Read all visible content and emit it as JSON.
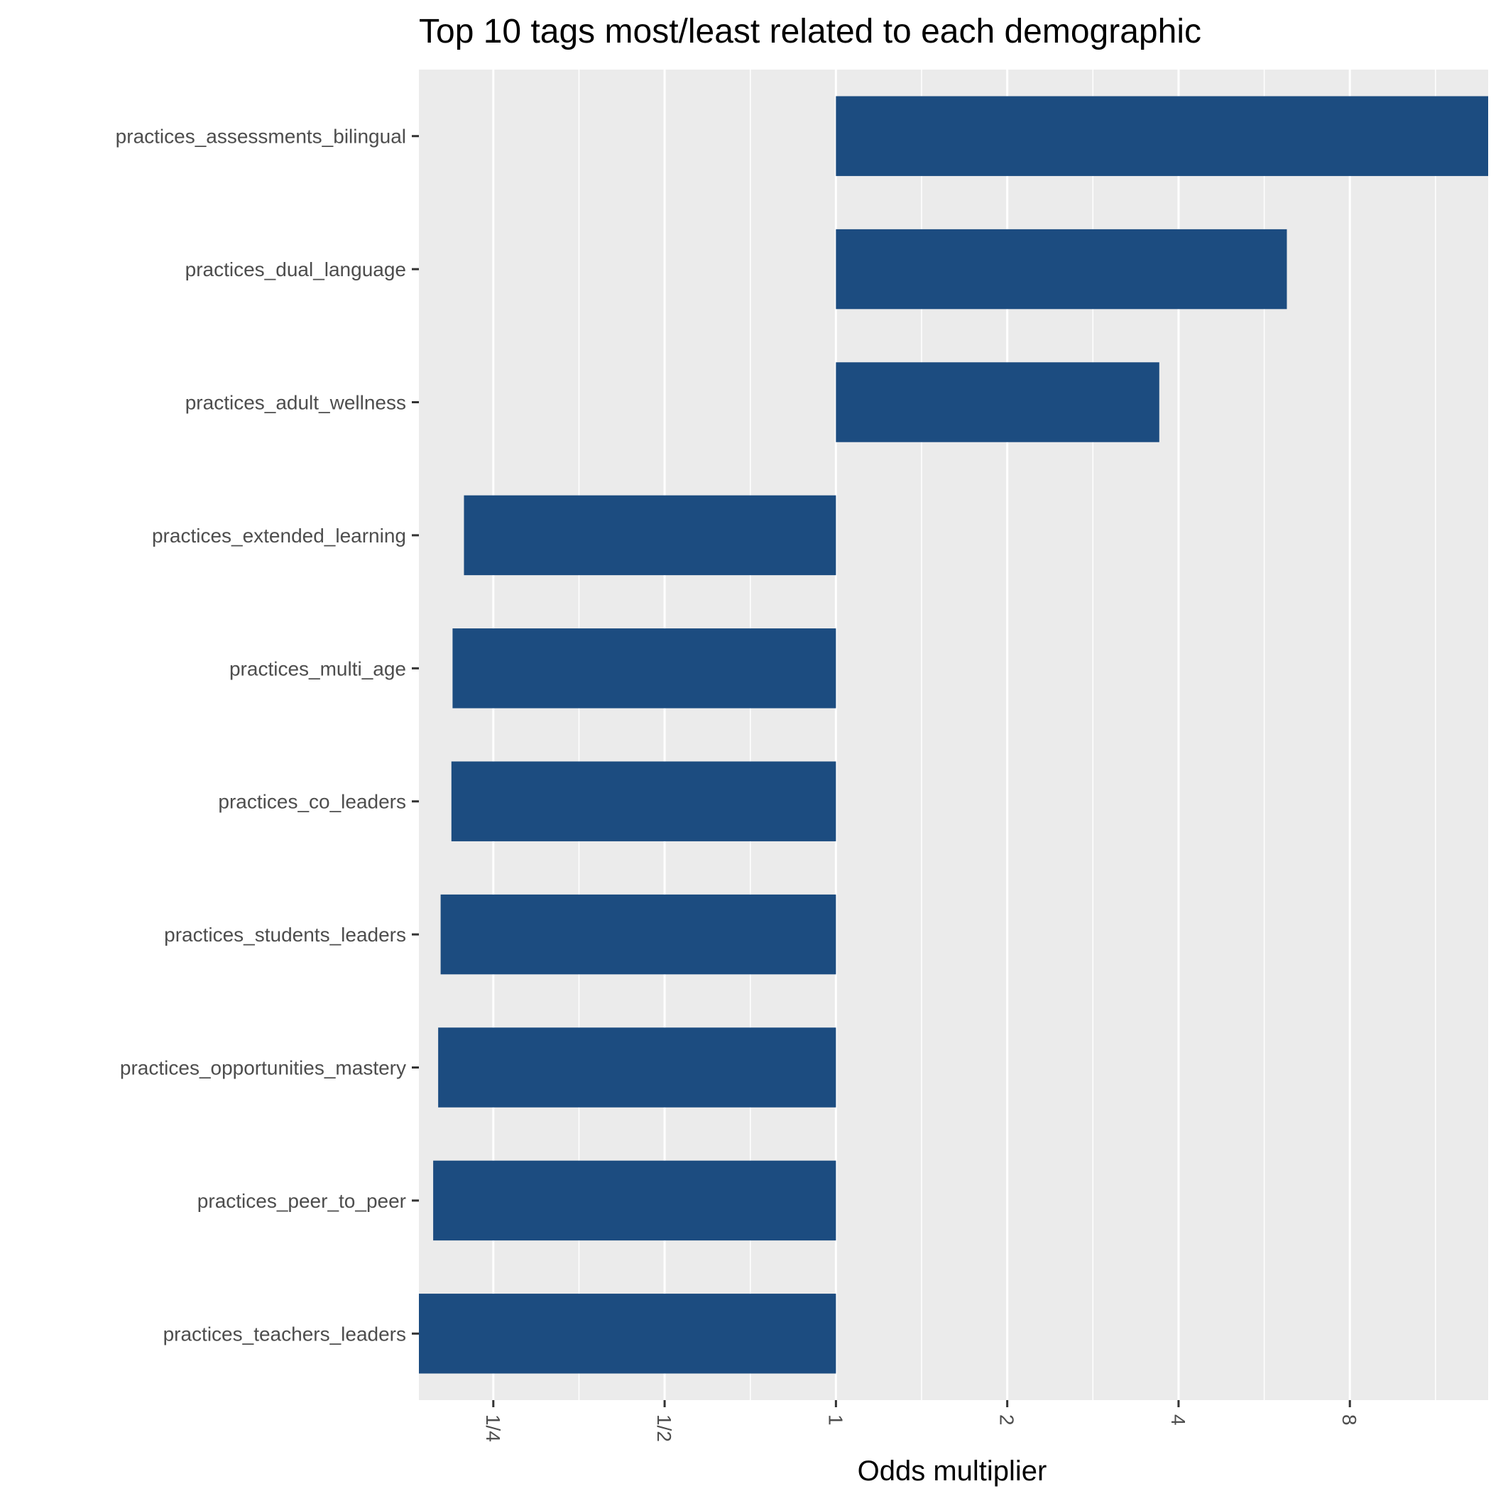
{
  "chart_data": {
    "type": "bar",
    "orientation": "horizontal",
    "title": "Top 10 tags most/least related to each demographic",
    "xlabel": "Odds multiplier",
    "ylabel": "",
    "x_scale": "log2",
    "xlim": [
      0.185,
      14
    ],
    "x_ticks": [
      {
        "value": 0.25,
        "label": "1/4"
      },
      {
        "value": 0.5,
        "label": "1/2"
      },
      {
        "value": 1,
        "label": "1"
      },
      {
        "value": 2,
        "label": "2"
      },
      {
        "value": 4,
        "label": "4"
      },
      {
        "value": 8,
        "label": "8"
      }
    ],
    "baseline": 1,
    "grid": true,
    "bar_color": "#1c4c80",
    "panel_color": "#ebebeb",
    "categories": [
      "practices_assessments_bilingual",
      "practices_dual_language",
      "practices_adult_wellness",
      "practices_extended_learning",
      "practices_multi_age",
      "practices_co_leaders",
      "practices_students_leaders",
      "practices_opportunities_mastery",
      "practices_peer_to_peer",
      "practices_teachers_leaders"
    ],
    "values": [
      14,
      6.2,
      3.7,
      0.222,
      0.212,
      0.211,
      0.202,
      0.2,
      0.196,
      0.185
    ]
  }
}
